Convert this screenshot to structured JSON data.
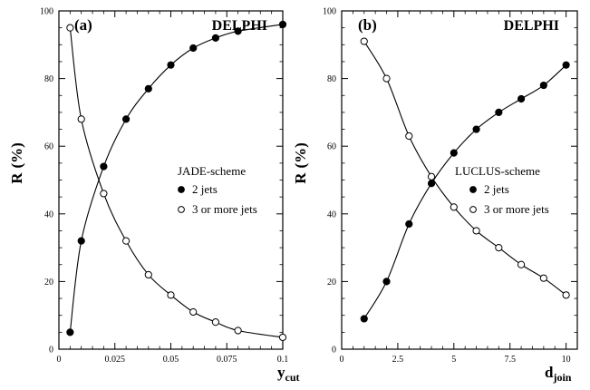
{
  "chart_data": [
    {
      "type": "line",
      "panel_label": "(a)",
      "experiment": "DELPHI",
      "legend_title": "JADE-scheme",
      "legend_placement": "center-right",
      "ylabel": "R (%)",
      "ylabel_main": "R",
      "ylabel_unit": "(%)",
      "xlabel": "y_cut",
      "xlabel_main": "y",
      "xlabel_sub": "cut",
      "xlim": [
        0,
        0.1
      ],
      "ylim": [
        0,
        100
      ],
      "x_ticks": [
        "0",
        "0.025",
        "0.05",
        "0.075",
        "0.1"
      ],
      "x_tick_values": [
        0,
        0.025,
        0.05,
        0.075,
        0.1
      ],
      "y_ticks": [
        "0",
        "20",
        "40",
        "60",
        "80",
        "100"
      ],
      "y_tick_values": [
        0,
        20,
        40,
        60,
        80,
        100
      ],
      "grid": false,
      "series": [
        {
          "name": "2 jets",
          "marker": "filled-circle",
          "x": [
            0.005,
            0.01,
            0.02,
            0.03,
            0.04,
            0.05,
            0.06,
            0.07,
            0.08,
            0.1
          ],
          "values": [
            5,
            32,
            54,
            68,
            77,
            84,
            89,
            92,
            94,
            96
          ]
        },
        {
          "name": "3 or more jets",
          "marker": "open-circle",
          "x": [
            0.005,
            0.01,
            0.02,
            0.03,
            0.04,
            0.05,
            0.06,
            0.07,
            0.08,
            0.1
          ],
          "values": [
            95,
            68,
            46,
            32,
            22,
            16,
            11,
            8,
            5.5,
            3.5
          ]
        }
      ]
    },
    {
      "type": "line",
      "panel_label": "(b)",
      "experiment": "DELPHI",
      "legend_title": "LUCLUS-scheme",
      "legend_placement": "center-right",
      "ylabel": "R (%)",
      "ylabel_main": "R",
      "ylabel_unit": "(%)",
      "xlabel": "d_join",
      "xlabel_main": "d",
      "xlabel_sub": "join",
      "xlim": [
        0,
        10.5
      ],
      "ylim": [
        0,
        100
      ],
      "x_ticks": [
        "0",
        "2.5",
        "5",
        "7.5",
        "10"
      ],
      "x_tick_values": [
        0,
        2.5,
        5,
        7.5,
        10
      ],
      "y_ticks": [
        "0",
        "20",
        "40",
        "60",
        "80",
        "100"
      ],
      "y_tick_values": [
        0,
        20,
        40,
        60,
        80,
        100
      ],
      "grid": false,
      "series": [
        {
          "name": "2 jets",
          "marker": "filled-circle",
          "x": [
            1,
            2,
            3,
            4,
            5,
            6,
            7,
            8,
            9,
            10
          ],
          "values": [
            9,
            20,
            37,
            49,
            58,
            65,
            70,
            74,
            78,
            84
          ]
        },
        {
          "name": "3 or more jets",
          "marker": "open-circle",
          "x": [
            1,
            2,
            3,
            4,
            5,
            6,
            7,
            8,
            9,
            10
          ],
          "values": [
            91,
            80,
            63,
            51,
            42,
            35,
            30,
            25,
            21,
            16
          ]
        }
      ]
    }
  ]
}
